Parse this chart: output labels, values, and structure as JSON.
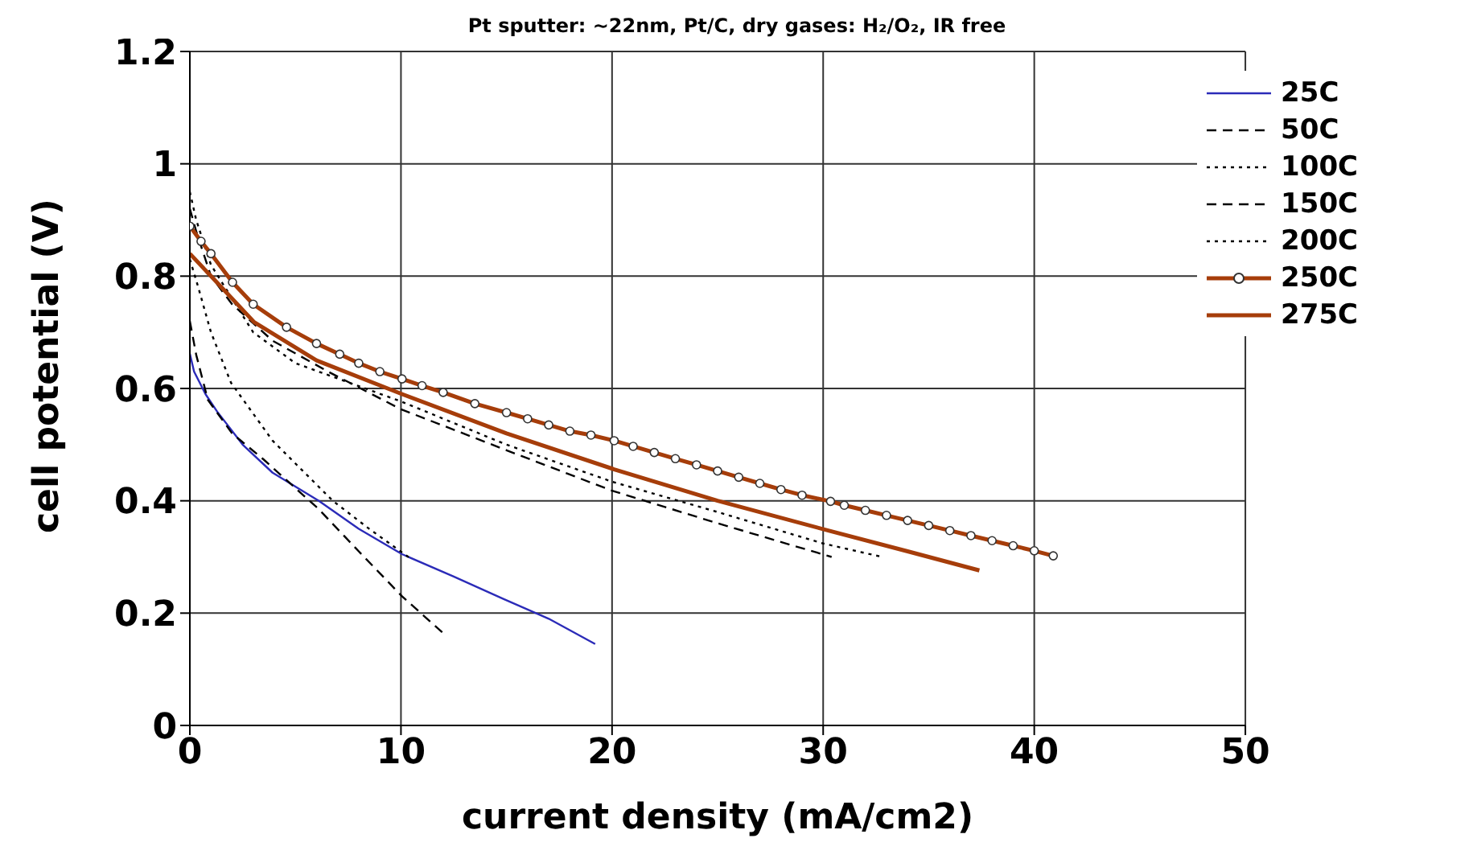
{
  "chart_data": {
    "type": "line",
    "title": "Pt sputter: ~22nm, Pt/C, dry gases: H₂/O₂, IR free",
    "xlabel": "current density (mA/cm2)",
    "ylabel": "cell potential (V)",
    "xlim": [
      0,
      50
    ],
    "xticks": [
      0,
      10,
      20,
      30,
      40,
      50
    ],
    "ylim": [
      0,
      1.2
    ],
    "yticks": [
      0,
      0.2,
      0.4,
      0.6,
      0.8,
      1,
      1.2
    ],
    "grid": true,
    "legend": "top right",
    "marker": "none",
    "series": [
      {
        "name": "25C",
        "color": "#2b2bb8",
        "line_style": "solid",
        "x": [
          0,
          0.2,
          0.74,
          1.29,
          2.5,
          3.92,
          6.11,
          8,
          10.05,
          12.5,
          14.87,
          17,
          19.2
        ],
        "values": [
          0.662,
          0.63,
          0.59,
          0.559,
          0.5,
          0.45,
          0.4,
          0.35,
          0.305,
          0.265,
          0.225,
          0.19,
          0.145
        ]
      },
      {
        "name": "50C",
        "color": "#000000",
        "line_style": "dashed",
        "x": [
          0,
          0.3,
          0.85,
          2,
          3.48,
          6.11,
          8,
          10.05,
          12.13
        ],
        "values": [
          0.72,
          0.66,
          0.58,
          0.52,
          0.474,
          0.385,
          0.31,
          0.23,
          0.16
        ]
      },
      {
        "name": "100C",
        "color": "#000000",
        "line_style": "dotted",
        "x": [
          0,
          0.4,
          1,
          1.95,
          3.92,
          6.77,
          8.5,
          10.5
        ],
        "values": [
          0.83,
          0.78,
          0.7,
          0.61,
          0.507,
          0.4,
          0.35,
          0.296
        ]
      },
      {
        "name": "150C",
        "color": "#000000",
        "line_style": "dashed",
        "x": [
          0,
          0.3,
          1,
          2,
          3.92,
          6.55,
          10,
          15,
          20,
          25,
          30.4
        ],
        "values": [
          0.92,
          0.88,
          0.8,
          0.75,
          0.685,
          0.63,
          0.563,
          0.49,
          0.418,
          0.36,
          0.3
        ]
      },
      {
        "name": "200C",
        "color": "#000000",
        "line_style": "dotted",
        "x": [
          0,
          0.3,
          1,
          2,
          3,
          5,
          10,
          15,
          20,
          25,
          30,
          32.8
        ],
        "values": [
          0.95,
          0.9,
          0.82,
          0.76,
          0.7,
          0.645,
          0.577,
          0.5,
          0.434,
          0.38,
          0.324,
          0.3
        ]
      },
      {
        "name": "250C",
        "color": "#a63d0a",
        "line_style": "solid",
        "marker": "circle",
        "x": [
          0,
          0.53,
          1,
          2.02,
          3,
          4.58,
          6,
          7.1,
          8,
          9,
          10.05,
          11,
          12,
          13.5,
          15,
          16,
          17,
          18,
          19,
          20.1,
          21,
          22,
          23,
          24,
          25,
          26,
          27,
          28,
          29,
          30.35,
          31,
          32,
          33,
          34,
          35,
          36,
          37,
          38,
          39,
          40,
          40.9
        ],
        "values": [
          0.889,
          0.862,
          0.84,
          0.789,
          0.75,
          0.709,
          0.68,
          0.661,
          0.645,
          0.63,
          0.617,
          0.605,
          0.593,
          0.573,
          0.557,
          0.546,
          0.535,
          0.524,
          0.517,
          0.507,
          0.497,
          0.486,
          0.475,
          0.464,
          0.453,
          0.442,
          0.431,
          0.42,
          0.41,
          0.399,
          0.392,
          0.383,
          0.374,
          0.365,
          0.356,
          0.347,
          0.338,
          0.329,
          0.32,
          0.311,
          0.302
        ]
      },
      {
        "name": "275C",
        "color": "#a63d0a",
        "line_style": "solid",
        "x": [
          0,
          1,
          3.05,
          6,
          10.05,
          15,
          20.1,
          25,
          30.35,
          34,
          37.4
        ],
        "values": [
          0.84,
          0.8,
          0.718,
          0.65,
          0.59,
          0.52,
          0.456,
          0.4,
          0.346,
          0.31,
          0.276
        ]
      }
    ]
  }
}
